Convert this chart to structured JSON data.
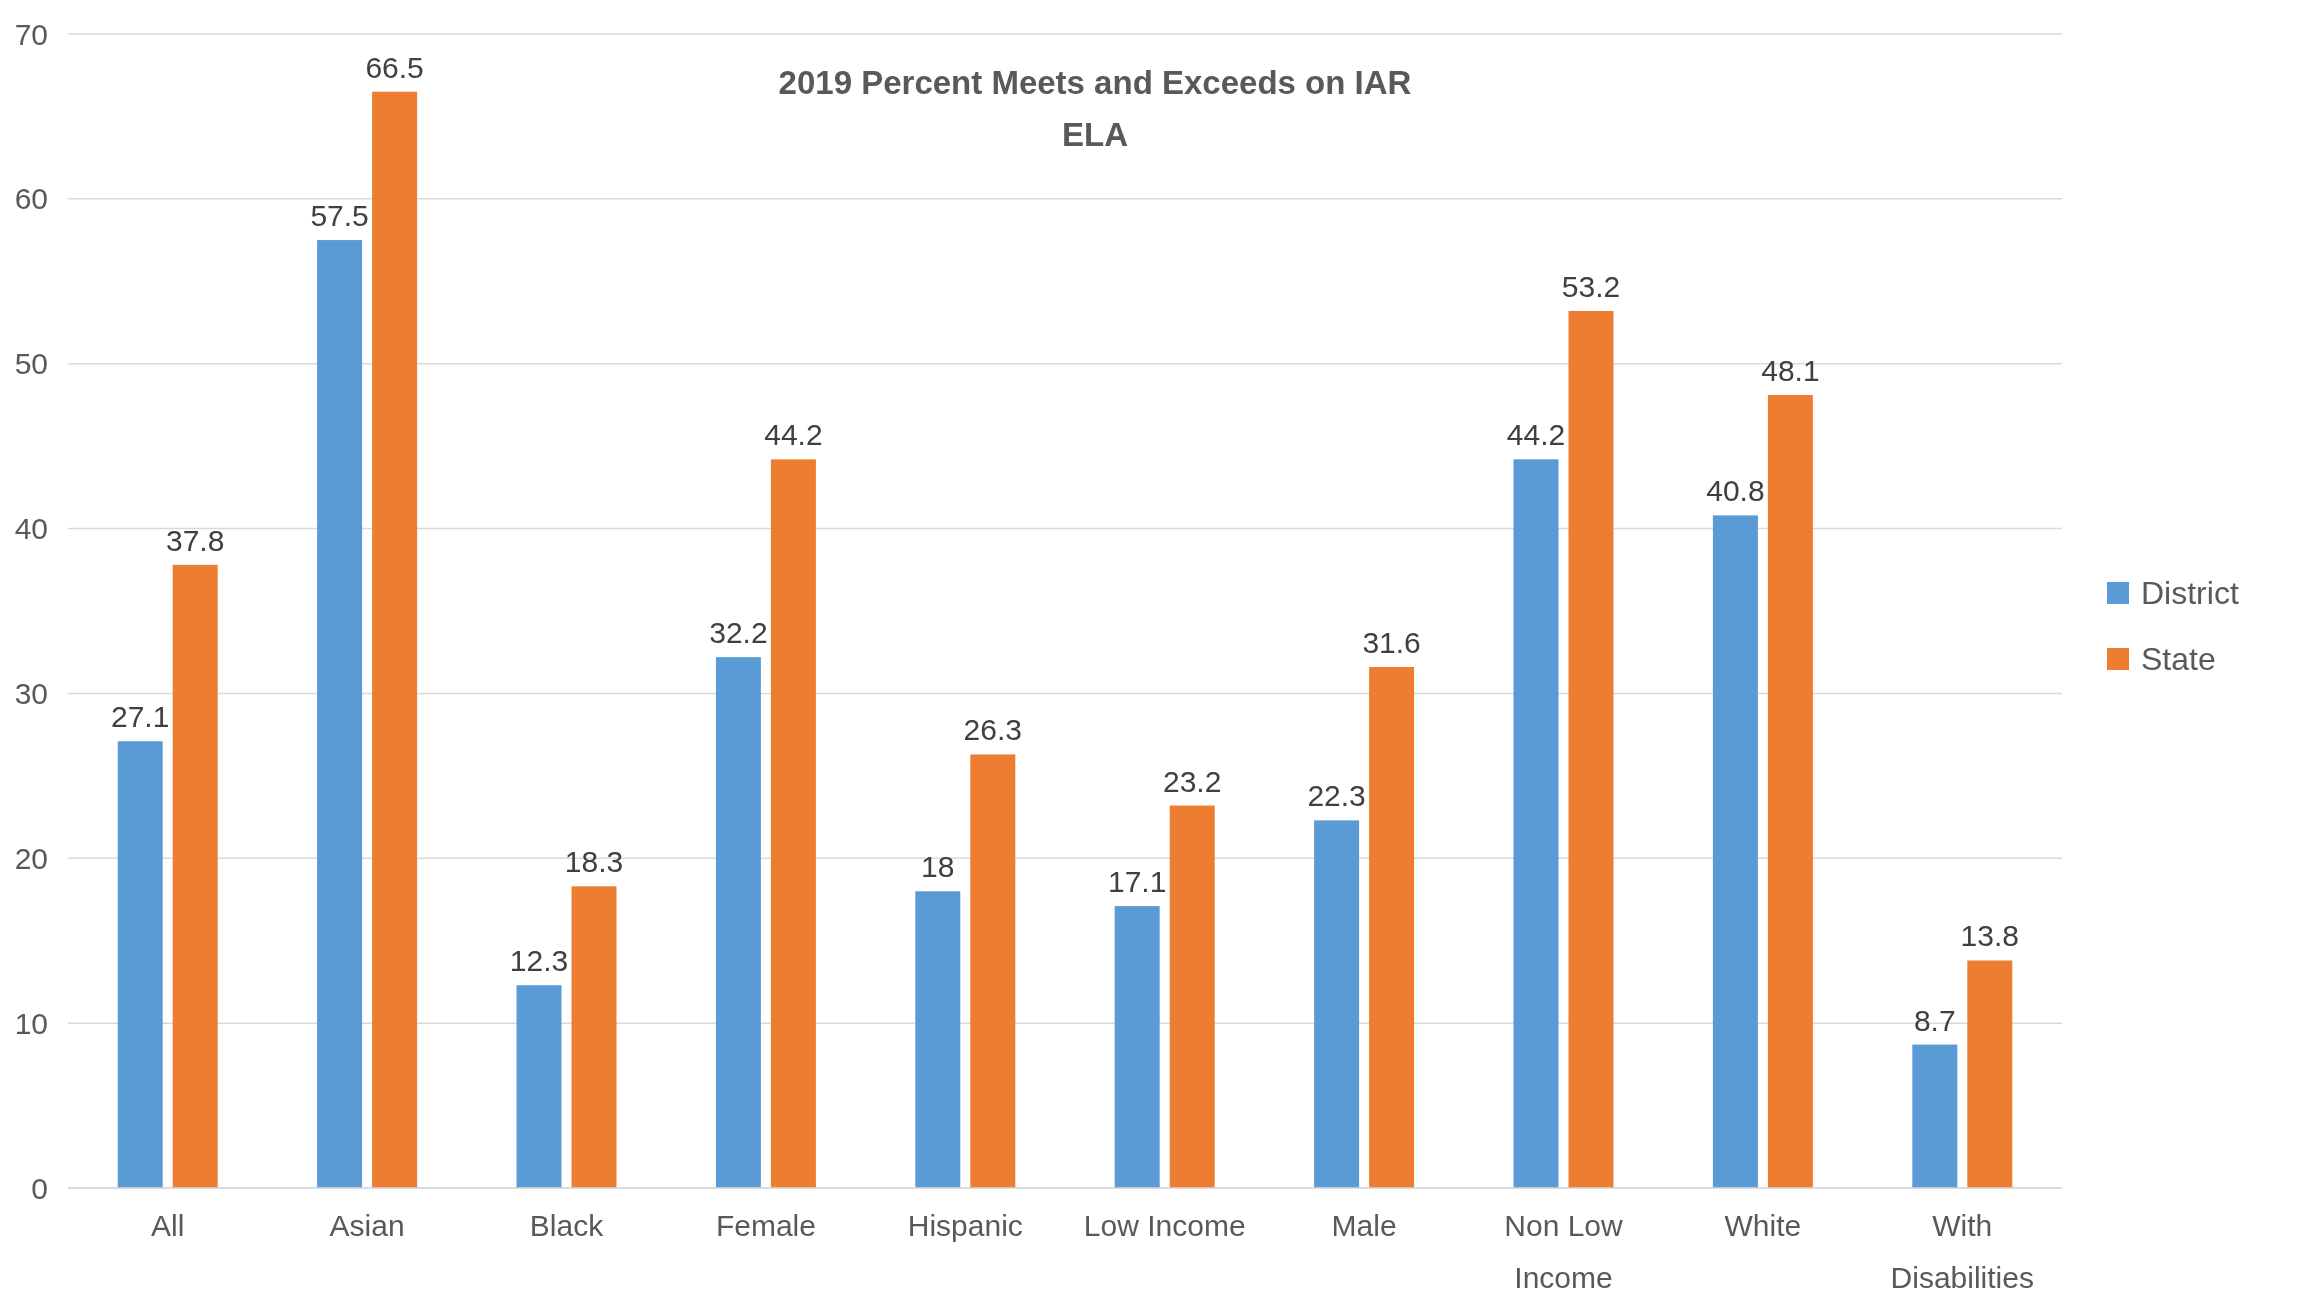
{
  "chart_data": {
    "type": "bar",
    "title": "2019 Percent Meets and Exceeds on IAR",
    "subtitle": "ELA",
    "categories": [
      "All",
      "Asian",
      "Black",
      "Female",
      "Hispanic",
      "Low Income",
      "Male",
      "Non Low Income",
      "White",
      "With Disabilities"
    ],
    "series": [
      {
        "name": "District",
        "color": "#5b9bd5",
        "values": [
          27.1,
          57.5,
          12.3,
          32.2,
          18,
          17.1,
          22.3,
          44.2,
          40.8,
          8.7
        ]
      },
      {
        "name": "State",
        "color": "#ed7d31",
        "values": [
          37.8,
          66.5,
          18.3,
          44.2,
          26.3,
          23.2,
          31.6,
          53.2,
          48.1,
          13.8
        ]
      }
    ],
    "ylim": [
      0,
      70
    ],
    "yticks": [
      0,
      10,
      20,
      30,
      40,
      50,
      60,
      70
    ],
    "grid": "y",
    "legend": "right",
    "data_labels": true
  }
}
